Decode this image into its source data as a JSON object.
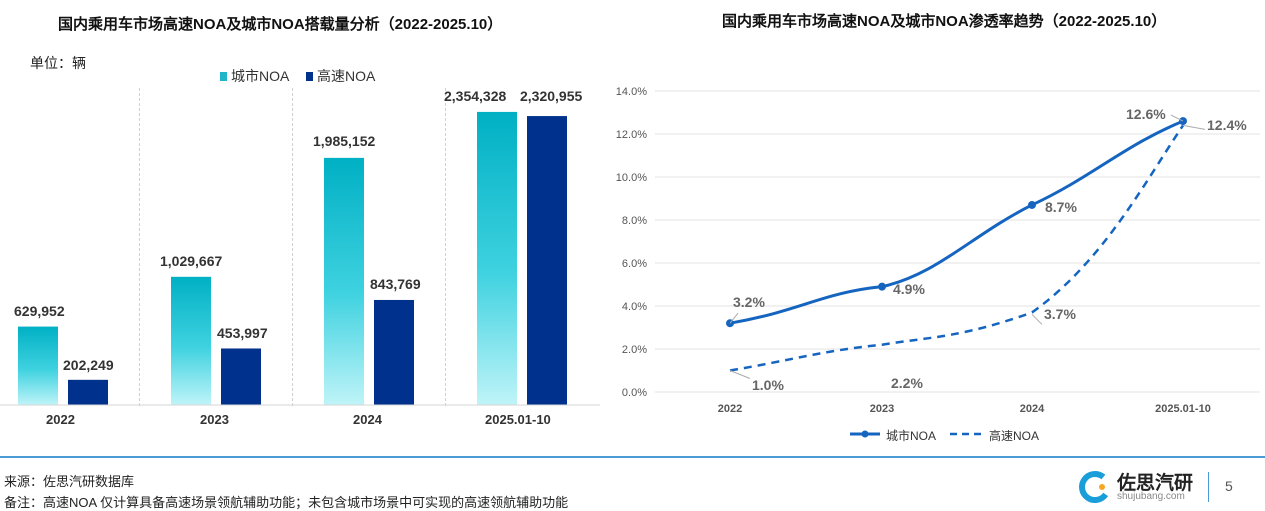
{
  "colors": {
    "city": "#1fb6c9",
    "highway": "#00318c",
    "line": "#1565c0",
    "grid": "#e3e3e3",
    "accent_line": "#4a9bd6"
  },
  "left": {
    "title": "国内乘用车市场高速NOA及城市NOA搭载量分析（2022-2025.10）",
    "unit": "单位：辆"
  },
  "right": {
    "title": "国内乘用车市场高速NOA及城市NOA渗透率趋势（2022-2025.10）"
  },
  "footer": {
    "source": "来源：佐思汽研数据库",
    "note": "备注：高速NOA 仅计算具备高速场景领航辅助功能；未包含城市场景中可实现的高速领航辅助功能",
    "brand_name": "佐思汽研",
    "brand_url": "shujubang.com",
    "page_number": "5"
  },
  "chart_data": [
    {
      "type": "bar",
      "title": "国内乘用车市场高速NOA及城市NOA搭载量分析（2022-2025.10）",
      "ylabel": "单位：辆",
      "categories": [
        "2022",
        "2023",
        "2024",
        "2025.01-10"
      ],
      "series": [
        {
          "name": "城市NOA",
          "values": [
            629952,
            1029667,
            1985152,
            2354328
          ],
          "labels": [
            "629,952",
            "1,029,667",
            "1,985,152",
            "2,354,328"
          ]
        },
        {
          "name": "高速NOA",
          "values": [
            202249,
            453997,
            843769,
            2320955
          ],
          "labels": [
            "202,249",
            "453,997",
            "843,769",
            "2,320,955"
          ]
        }
      ],
      "ylim": [
        0,
        2450000
      ],
      "legend": "top"
    },
    {
      "type": "line",
      "title": "国内乘用车市场高速NOA及城市NOA渗透率趋势（2022-2025.10）",
      "categories": [
        "2022",
        "2023",
        "2024",
        "2025.01-10"
      ],
      "yticks": [
        "0.0%",
        "2.0%",
        "4.0%",
        "6.0%",
        "8.0%",
        "10.0%",
        "12.0%",
        "14.0%"
      ],
      "ylim": [
        0,
        14
      ],
      "series": [
        {
          "name": "城市NOA",
          "style": "solid",
          "values": [
            3.2,
            4.9,
            8.7,
            12.6
          ],
          "labels": [
            "3.2%",
            "4.9%",
            "8.7%",
            "12.6%"
          ]
        },
        {
          "name": "高速NOA",
          "style": "dashed",
          "values": [
            1.0,
            2.2,
            3.7,
            12.4
          ],
          "labels": [
            "1.0%",
            "2.2%",
            "3.7%",
            "12.4%"
          ]
        }
      ],
      "grid": true,
      "legend": "bottom"
    }
  ]
}
